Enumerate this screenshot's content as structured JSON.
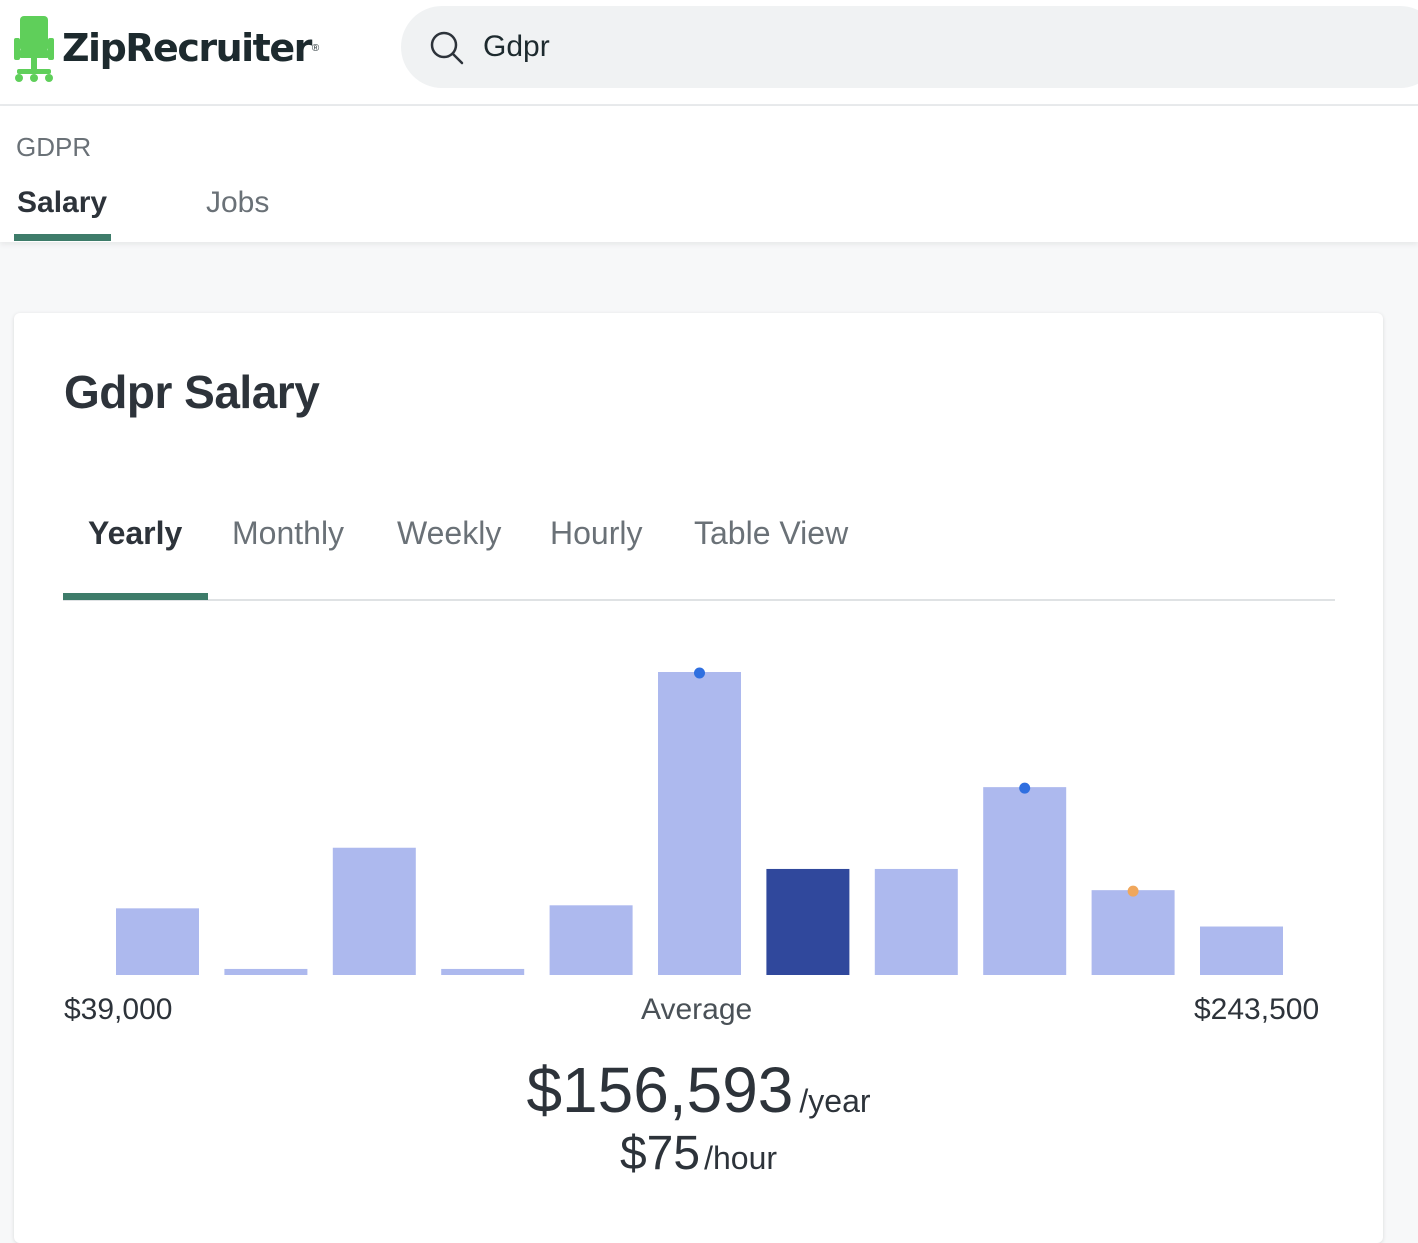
{
  "header": {
    "logo_text": "ZipRecruiter",
    "logo_mark": "®",
    "logo_icon": "chair-icon",
    "search": {
      "value": "Gdpr",
      "icon": "search-icon"
    }
  },
  "subnav": {
    "breadcrumb": "GDPR",
    "tabs": [
      {
        "label": "Salary",
        "active": true
      },
      {
        "label": "Jobs",
        "active": false
      }
    ]
  },
  "card": {
    "title": "Gdpr Salary",
    "period_tabs": [
      {
        "label": "Yearly",
        "active": true
      },
      {
        "label": "Monthly",
        "active": false
      },
      {
        "label": "Weekly",
        "active": false
      },
      {
        "label": "Hourly",
        "active": false
      },
      {
        "label": "Table View",
        "active": false
      }
    ],
    "min_label": "$39,000",
    "avg_label": "Average",
    "max_label": "$243,500",
    "average_value": "$156,593",
    "average_unit": "/year",
    "hourly_value": "$75",
    "hourly_unit": "/hour"
  },
  "colors": {
    "accent_green": "#3e7c6a",
    "bar": "#adb9ee",
    "bar_highlight": "#30489c",
    "marker_blue": "#2f6fe0",
    "marker_orange": "#f0a75c"
  },
  "chart_data": {
    "type": "bar",
    "range": [
      39000,
      243500
    ],
    "values": [
      22,
      2,
      42,
      2,
      23,
      100,
      35,
      35,
      62,
      28,
      16
    ],
    "highlight_index": 6,
    "markers": [
      {
        "bar": 5,
        "color": "blue"
      },
      {
        "bar": 8,
        "color": "blue"
      },
      {
        "bar": 9,
        "color": "orange"
      }
    ]
  }
}
